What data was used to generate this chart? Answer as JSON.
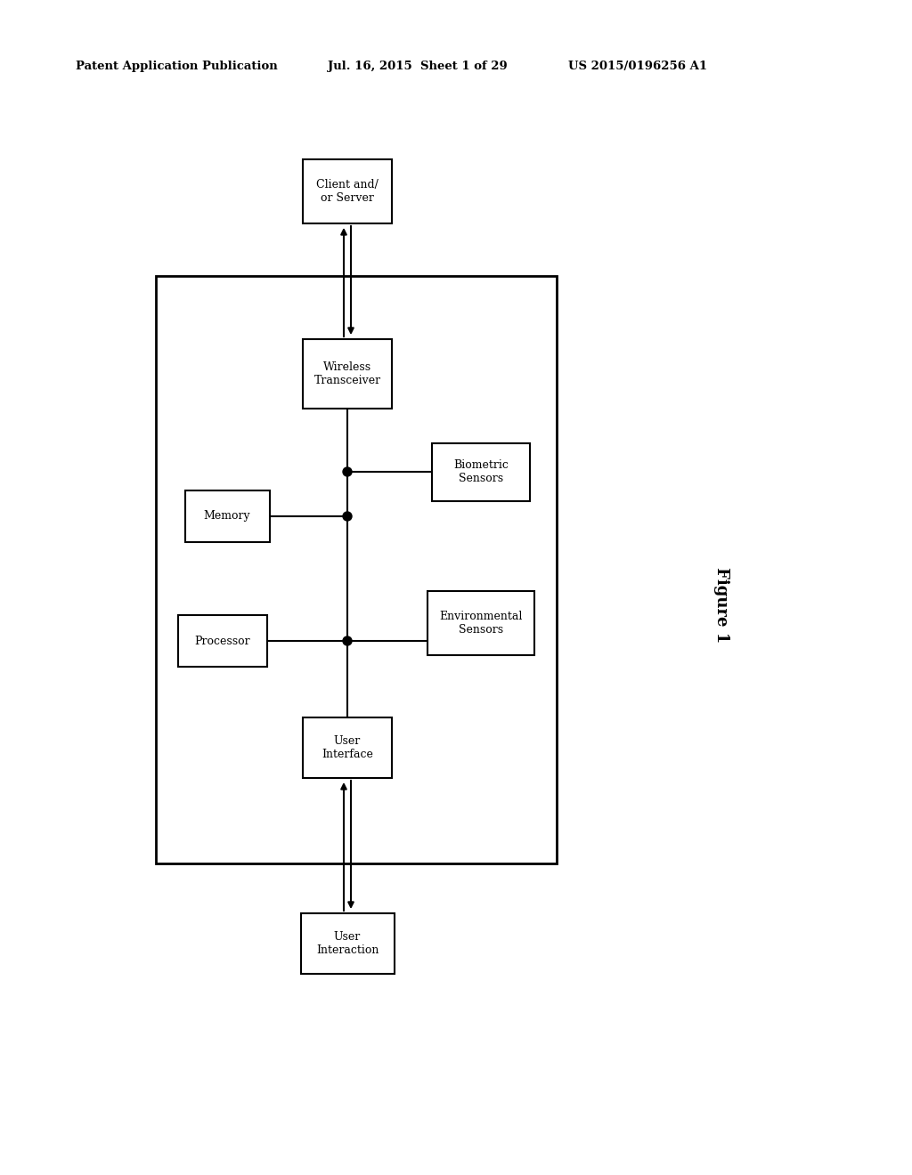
{
  "bg_color": "#ffffff",
  "header_left": "Patent Application Publication",
  "header_center": "Jul. 16, 2015  Sheet 1 of 29",
  "header_right": "US 2015/0196256 A1",
  "figure_label": "Figure 1",
  "font_size_box": 9.0,
  "font_size_header": 9.5,
  "font_size_figure": 13
}
